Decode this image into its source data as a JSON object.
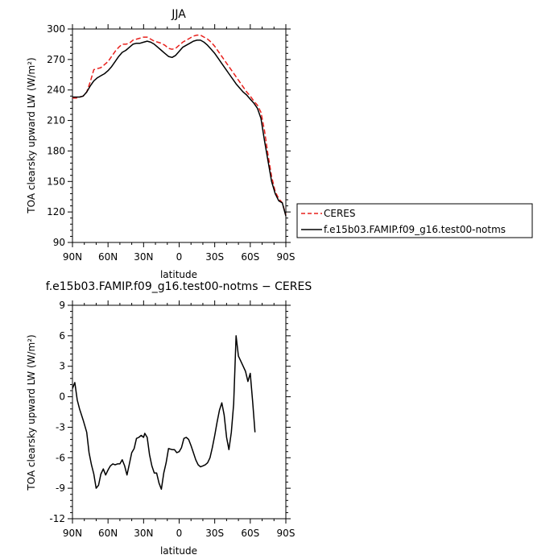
{
  "chart_data": [
    {
      "type": "line",
      "title": "JJA",
      "xlabel": "latitude",
      "ylabel": "TOA clearsky upward LW (W/m²)",
      "xlim": [
        90,
        -90
      ],
      "ylim": [
        90,
        300
      ],
      "x_ticks": [
        {
          "v": 90,
          "label": "90N"
        },
        {
          "v": 60,
          "label": "60N"
        },
        {
          "v": 30,
          "label": "30N"
        },
        {
          "v": 0,
          "label": "0"
        },
        {
          "v": -30,
          "label": "30S"
        },
        {
          "v": -60,
          "label": "60S"
        },
        {
          "v": -90,
          "label": "90S"
        }
      ],
      "y_ticks": [
        90,
        120,
        150,
        180,
        210,
        240,
        270,
        300
      ],
      "legend_position": "right",
      "series": [
        {
          "name": "CERES",
          "style": "dashed",
          "color": "#e8201c",
          "points": [
            [
              90,
              232
            ],
            [
              87,
              232
            ],
            [
              84,
              233
            ],
            [
              81,
              234
            ],
            [
              78,
              238
            ],
            [
              75,
              248
            ],
            [
              72,
              260
            ],
            [
              69,
              261
            ],
            [
              66,
              262
            ],
            [
              63,
              265
            ],
            [
              60,
              268
            ],
            [
              57,
              273
            ],
            [
              54,
              278
            ],
            [
              51,
              282
            ],
            [
              48,
              285
            ],
            [
              45,
              285
            ],
            [
              42,
              286
            ],
            [
              39,
              289
            ],
            [
              36,
              290
            ],
            [
              33,
              291
            ],
            [
              30,
              292
            ],
            [
              27,
              292
            ],
            [
              24,
              290
            ],
            [
              21,
              288
            ],
            [
              18,
              287
            ],
            [
              15,
              286
            ],
            [
              12,
              284
            ],
            [
              9,
              281
            ],
            [
              6,
              280
            ],
            [
              3,
              281
            ],
            [
              0,
              284
            ],
            [
              -3,
              287
            ],
            [
              -6,
              289
            ],
            [
              -9,
              291
            ],
            [
              -12,
              293
            ],
            [
              -15,
              294
            ],
            [
              -18,
              294
            ],
            [
              -21,
              292
            ],
            [
              -24,
              290
            ],
            [
              -27,
              287
            ],
            [
              -30,
              283
            ],
            [
              -33,
              278
            ],
            [
              -36,
              273
            ],
            [
              -39,
              268
            ],
            [
              -42,
              263
            ],
            [
              -45,
              258
            ],
            [
              -48,
              253
            ],
            [
              -51,
              248
            ],
            [
              -54,
              243
            ],
            [
              -57,
              238
            ],
            [
              -60,
              234
            ],
            [
              -63,
              229
            ],
            [
              -66,
              225
            ],
            [
              -69,
              218
            ],
            [
              -72,
              200
            ],
            [
              -75,
              176
            ],
            [
              -78,
              155
            ],
            [
              -81,
              140
            ],
            [
              -84,
              133
            ],
            [
              -87,
              129
            ],
            [
              -90,
              117
            ]
          ]
        },
        {
          "name": "f.e15b03.FAMIP.f09_g16.test00-notms",
          "style": "solid",
          "color": "#000000",
          "points": [
            [
              90,
              233
            ],
            [
              87,
              233
            ],
            [
              84,
              233
            ],
            [
              81,
              234
            ],
            [
              78,
              238
            ],
            [
              75,
              244
            ],
            [
              72,
              249
            ],
            [
              69,
              252
            ],
            [
              66,
              254
            ],
            [
              63,
              256
            ],
            [
              60,
              259
            ],
            [
              57,
              263
            ],
            [
              54,
              268
            ],
            [
              51,
              273
            ],
            [
              48,
              277
            ],
            [
              45,
              279
            ],
            [
              42,
              282
            ],
            [
              39,
              285
            ],
            [
              36,
              286
            ],
            [
              33,
              286
            ],
            [
              30,
              287
            ],
            [
              27,
              288
            ],
            [
              24,
              287
            ],
            [
              21,
              285
            ],
            [
              18,
              282
            ],
            [
              15,
              279
            ],
            [
              12,
              276
            ],
            [
              9,
              273
            ],
            [
              6,
              272
            ],
            [
              3,
              274
            ],
            [
              0,
              278
            ],
            [
              -3,
              282
            ],
            [
              -6,
              284
            ],
            [
              -9,
              286
            ],
            [
              -12,
              288
            ],
            [
              -15,
              289
            ],
            [
              -18,
              289
            ],
            [
              -21,
              287
            ],
            [
              -24,
              284
            ],
            [
              -27,
              280
            ],
            [
              -30,
              276
            ],
            [
              -33,
              271
            ],
            [
              -36,
              266
            ],
            [
              -39,
              261
            ],
            [
              -42,
              256
            ],
            [
              -45,
              251
            ],
            [
              -48,
              246
            ],
            [
              -51,
              242
            ],
            [
              -54,
              238
            ],
            [
              -57,
              235
            ],
            [
              -60,
              231
            ],
            [
              -63,
              227
            ],
            [
              -66,
              222
            ],
            [
              -69,
              212
            ],
            [
              -72,
              190
            ],
            [
              -75,
              170
            ],
            [
              -78,
              150
            ],
            [
              -81,
              138
            ],
            [
              -84,
              131
            ],
            [
              -87,
              129
            ],
            [
              -90,
              116
            ]
          ]
        }
      ]
    },
    {
      "type": "line",
      "title": "f.e15b03.FAMIP.f09_g16.test00-notms − CERES",
      "xlabel": "latitude",
      "ylabel": "TOA clearsky upward LW (W/m²)",
      "xlim": [
        90,
        -90
      ],
      "ylim": [
        -12,
        9
      ],
      "x_ticks": [
        {
          "v": 90,
          "label": "90N"
        },
        {
          "v": 60,
          "label": "60N"
        },
        {
          "v": 30,
          "label": "30N"
        },
        {
          "v": 0,
          "label": "0"
        },
        {
          "v": -30,
          "label": "30S"
        },
        {
          "v": -60,
          "label": "60S"
        },
        {
          "v": -90,
          "label": "90S"
        }
      ],
      "y_ticks": [
        -12,
        -9,
        -6,
        -3,
        0,
        3,
        6,
        9
      ],
      "series": [
        {
          "style": "solid",
          "color": "#000000",
          "points": [
            [
              90,
              0.8
            ],
            [
              88,
              1.4
            ],
            [
              86,
              -0.3
            ],
            [
              84,
              -1.2
            ],
            [
              81,
              -2.3
            ],
            [
              78,
              -3.5
            ],
            [
              76,
              -5.5
            ],
            [
              74,
              -6.7
            ],
            [
              72,
              -7.6
            ],
            [
              70,
              -9.0
            ],
            [
              68,
              -8.7
            ],
            [
              66,
              -7.6
            ],
            [
              64,
              -7.1
            ],
            [
              62,
              -7.7
            ],
            [
              60,
              -7.2
            ],
            [
              58,
              -6.8
            ],
            [
              56,
              -6.6
            ],
            [
              54,
              -6.7
            ],
            [
              52,
              -6.6
            ],
            [
              50,
              -6.6
            ],
            [
              48,
              -6.2
            ],
            [
              46,
              -6.8
            ],
            [
              44,
              -7.7
            ],
            [
              42,
              -6.6
            ],
            [
              40,
              -5.5
            ],
            [
              38,
              -5.1
            ],
            [
              36,
              -4.1
            ],
            [
              34,
              -4.0
            ],
            [
              32,
              -3.8
            ],
            [
              30,
              -4.0
            ],
            [
              29,
              -3.6
            ],
            [
              27,
              -4.0
            ],
            [
              25,
              -5.7
            ],
            [
              23,
              -6.8
            ],
            [
              21,
              -7.5
            ],
            [
              19,
              -7.5
            ],
            [
              17,
              -8.5
            ],
            [
              15,
              -9.1
            ],
            [
              13,
              -7.5
            ],
            [
              11,
              -6.5
            ],
            [
              9,
              -5.1
            ],
            [
              6,
              -5.2
            ],
            [
              4,
              -5.2
            ],
            [
              2,
              -5.5
            ],
            [
              0,
              -5.4
            ],
            [
              -2,
              -5.0
            ],
            [
              -4,
              -4.1
            ],
            [
              -6,
              -4.0
            ],
            [
              -8,
              -4.2
            ],
            [
              -10,
              -4.8
            ],
            [
              -12,
              -5.5
            ],
            [
              -14,
              -6.2
            ],
            [
              -16,
              -6.7
            ],
            [
              -18,
              -6.9
            ],
            [
              -20,
              -6.8
            ],
            [
              -22,
              -6.7
            ],
            [
              -24,
              -6.5
            ],
            [
              -26,
              -6.0
            ],
            [
              -28,
              -5.0
            ],
            [
              -30,
              -3.8
            ],
            [
              -32,
              -2.5
            ],
            [
              -34,
              -1.3
            ],
            [
              -36,
              -0.6
            ],
            [
              -38,
              -1.8
            ],
            [
              -40,
              -4.0
            ],
            [
              -42,
              -5.2
            ],
            [
              -44,
              -3.5
            ],
            [
              -46,
              -0.7
            ],
            [
              -48,
              6.0
            ],
            [
              -50,
              4.0
            ],
            [
              -52,
              3.5
            ],
            [
              -54,
              3.0
            ],
            [
              -56,
              2.5
            ],
            [
              -58,
              1.5
            ],
            [
              -60,
              2.3
            ],
            [
              -62,
              -0.5
            ],
            [
              -64,
              -3.5
            ]
          ]
        }
      ]
    }
  ]
}
